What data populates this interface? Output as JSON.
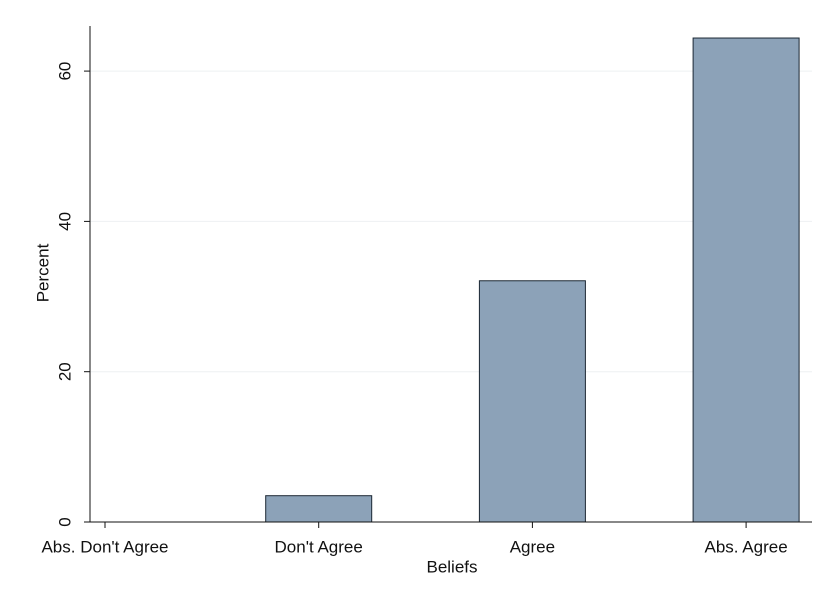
{
  "chart_data": {
    "type": "bar",
    "x_label": "Beliefs",
    "y_label": "Percent",
    "categories": [
      "Abs. Don't Agree",
      "Don't Agree",
      "Agree",
      "Abs. Agree"
    ],
    "values": [
      0,
      3.5,
      32.1,
      64.4
    ],
    "color": "#8ca2b8",
    "ylim": [
      0,
      66
    ],
    "yticks": [
      0,
      20,
      40,
      60
    ],
    "grid": true
  }
}
